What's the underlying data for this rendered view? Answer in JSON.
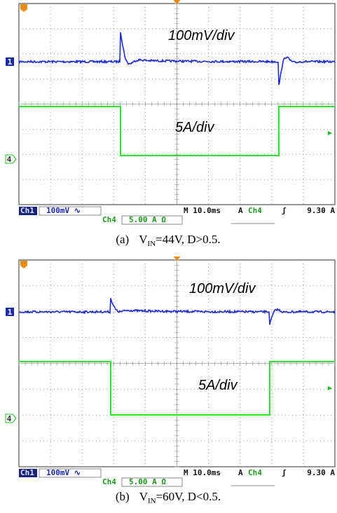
{
  "panels": [
    {
      "scope": {
        "volt_label": "100mV/div",
        "current_label": "5A/div",
        "ch1_marker": "1",
        "ch4_marker": "4",
        "status": {
          "ch1": "Ch1",
          "ch1_scale": "100mV ∿",
          "timebase": "M 10.0ms",
          "trigger_mode": "A",
          "trigger_source": "Ch4",
          "trigger_slope": "ʃ",
          "trigger_level": "9.30 A",
          "ch4": "Ch4",
          "ch4_scale": "5.00 A Ω"
        }
      },
      "caption": {
        "label": "(a)",
        "v": "V",
        "sub": "IN",
        "rest": "=44V, D>0.5."
      }
    },
    {
      "scope": {
        "volt_label": "100mV/div",
        "current_label": "5A/div",
        "ch1_marker": "1",
        "ch4_marker": "4",
        "status": {
          "ch1": "Ch1",
          "ch1_scale": "100mV ∿",
          "timebase": "M 10.0ms",
          "trigger_mode": "A",
          "trigger_source": "Ch4",
          "trigger_slope": "ʃ",
          "trigger_level": "9.30 A",
          "ch4": "Ch4",
          "ch4_scale": "5.00 A Ω"
        }
      },
      "caption": {
        "label": "(b)",
        "v": "V",
        "sub": "IN",
        "rest": "=60V, D<0.5."
      }
    }
  ]
}
